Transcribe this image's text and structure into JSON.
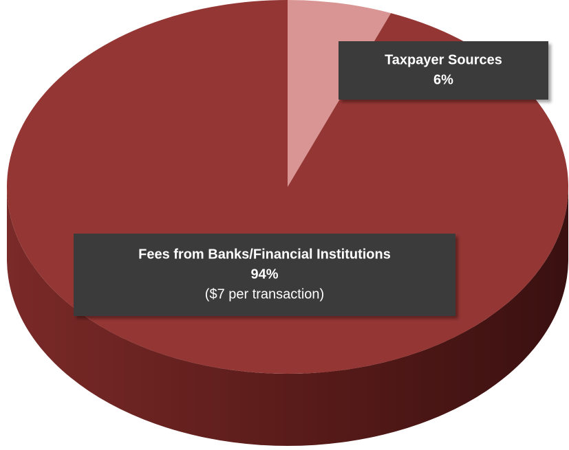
{
  "chart_data": {
    "type": "pie",
    "categories": [
      "Taxpayer Sources",
      "Fees from Banks/Financial Institutions"
    ],
    "values": [
      6,
      94
    ],
    "value_labels": [
      "6%",
      "94%"
    ],
    "colors": [
      "#d99594",
      "#943634"
    ],
    "annotations": [
      "($7 per transaction)"
    ]
  }
}
